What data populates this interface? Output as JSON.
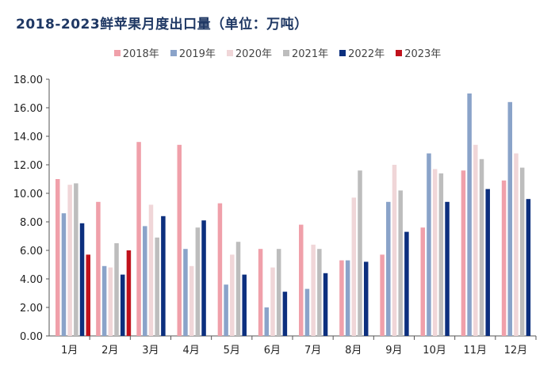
{
  "title": "2018-2023鲜苹果月度出口量（单位：万吨）",
  "colors": [
    "#f0a0aa",
    "#8aa3c9",
    "#f0d6d8",
    "#bdbdbd",
    "#0c2f7e",
    "#c0121c"
  ],
  "chart_data": {
    "type": "bar",
    "title": "2018-2023鲜苹果月度出口量（单位：万吨）",
    "xlabel": "",
    "ylabel": "",
    "ylim": [
      0,
      18
    ],
    "yticks": [
      "0.00",
      "2.00",
      "4.00",
      "6.00",
      "8.00",
      "10.00",
      "12.00",
      "14.00",
      "16.00",
      "18.00"
    ],
    "grid": false,
    "legend_position": "top",
    "categories": [
      "1月",
      "2月",
      "3月",
      "4月",
      "5月",
      "6月",
      "7月",
      "8月",
      "9月",
      "10月",
      "11月",
      "12月"
    ],
    "series": [
      {
        "name": "2018年",
        "values": [
          11.0,
          9.4,
          13.6,
          13.4,
          9.3,
          6.1,
          7.8,
          5.3,
          5.7,
          7.6,
          11.6,
          10.9
        ]
      },
      {
        "name": "2019年",
        "values": [
          8.6,
          4.9,
          7.7,
          6.1,
          3.6,
          2.0,
          3.3,
          5.3,
          9.4,
          12.8,
          17.0,
          16.4
        ]
      },
      {
        "name": "2020年",
        "values": [
          10.6,
          4.8,
          9.2,
          4.9,
          5.7,
          4.8,
          6.4,
          9.7,
          12.0,
          11.7,
          13.4,
          12.8
        ]
      },
      {
        "name": "2021年",
        "values": [
          10.7,
          6.5,
          6.9,
          7.6,
          6.6,
          6.1,
          6.1,
          11.6,
          10.2,
          11.4,
          12.4,
          11.8
        ]
      },
      {
        "name": "2022年",
        "values": [
          7.9,
          4.3,
          8.4,
          8.1,
          4.3,
          3.1,
          4.4,
          5.2,
          7.3,
          9.4,
          10.3,
          9.6
        ]
      },
      {
        "name": "2023年",
        "values": [
          5.7,
          6.0,
          null,
          null,
          null,
          null,
          null,
          null,
          null,
          null,
          null,
          null
        ]
      }
    ]
  }
}
